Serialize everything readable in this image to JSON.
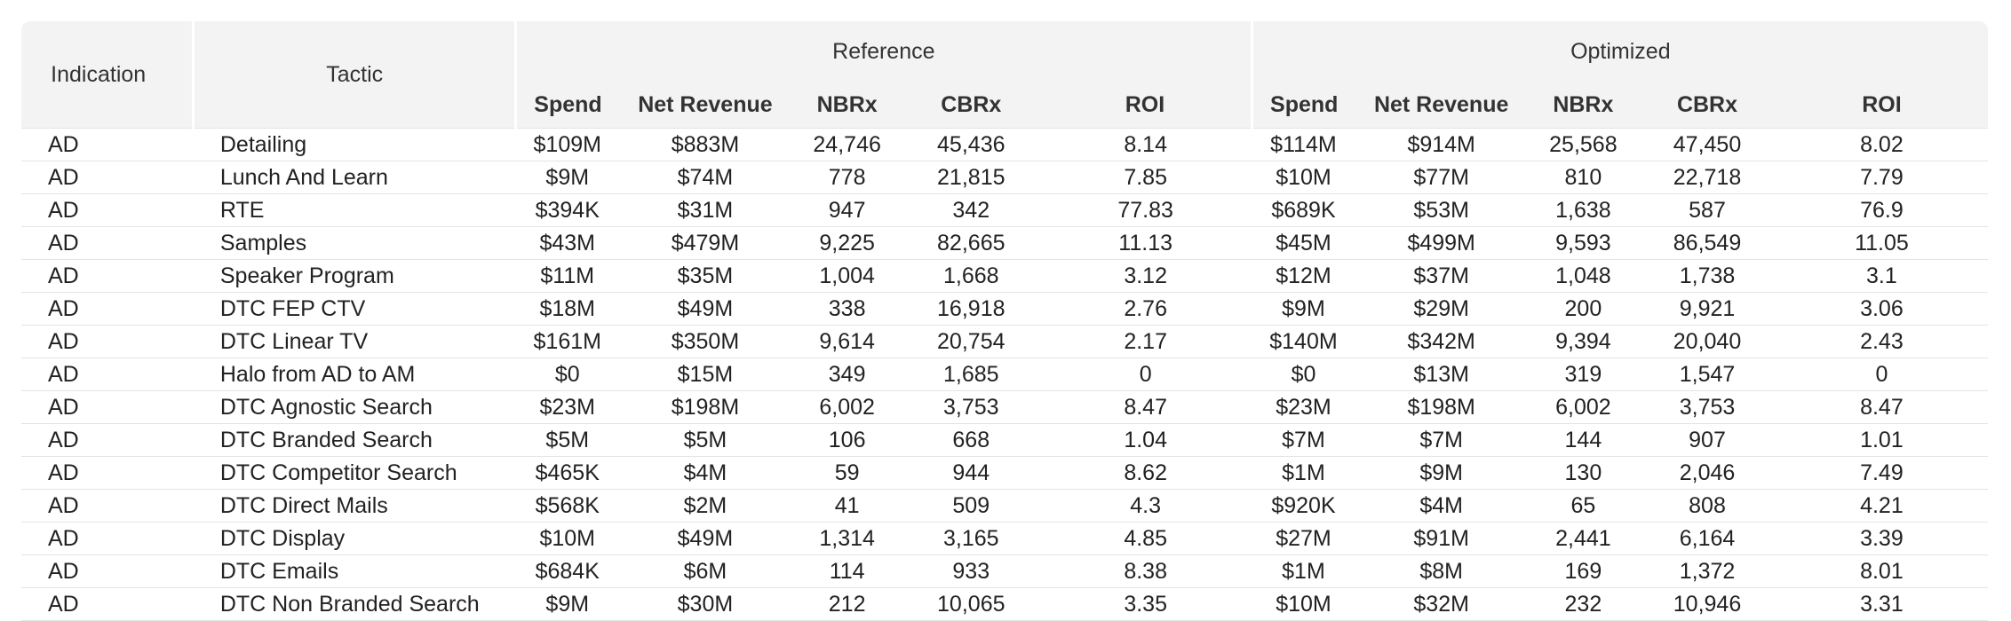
{
  "headers": {
    "indication": "Indication",
    "tactic": "Tactic",
    "reference": "Reference",
    "optimized": "Optimized",
    "metrics": [
      "Spend",
      "Net Revenue",
      "NBRx",
      "CBRx",
      "ROI"
    ]
  },
  "rows": [
    {
      "indication": "AD",
      "tactic": "Detailing",
      "ref": [
        "$109M",
        "$883M",
        "24,746",
        "45,436",
        "8.14"
      ],
      "opt": [
        "$114M",
        "$914M",
        "25,568",
        "47,450",
        "8.02"
      ]
    },
    {
      "indication": "AD",
      "tactic": "Lunch And Learn",
      "ref": [
        "$9M",
        "$74M",
        "778",
        "21,815",
        "7.85"
      ],
      "opt": [
        "$10M",
        "$77M",
        "810",
        "22,718",
        "7.79"
      ]
    },
    {
      "indication": "AD",
      "tactic": "RTE",
      "ref": [
        "$394K",
        "$31M",
        "947",
        "342",
        "77.83"
      ],
      "opt": [
        "$689K",
        "$53M",
        "1,638",
        "587",
        "76.9"
      ]
    },
    {
      "indication": "AD",
      "tactic": "Samples",
      "ref": [
        "$43M",
        "$479M",
        "9,225",
        "82,665",
        "11.13"
      ],
      "opt": [
        "$45M",
        "$499M",
        "9,593",
        "86,549",
        "11.05"
      ]
    },
    {
      "indication": "AD",
      "tactic": "Speaker Program",
      "ref": [
        "$11M",
        "$35M",
        "1,004",
        "1,668",
        "3.12"
      ],
      "opt": [
        "$12M",
        "$37M",
        "1,048",
        "1,738",
        "3.1"
      ]
    },
    {
      "indication": "AD",
      "tactic": "DTC FEP CTV",
      "ref": [
        "$18M",
        "$49M",
        "338",
        "16,918",
        "2.76"
      ],
      "opt": [
        "$9M",
        "$29M",
        "200",
        "9,921",
        "3.06"
      ]
    },
    {
      "indication": "AD",
      "tactic": "DTC Linear TV",
      "ref": [
        "$161M",
        "$350M",
        "9,614",
        "20,754",
        "2.17"
      ],
      "opt": [
        "$140M",
        "$342M",
        "9,394",
        "20,040",
        "2.43"
      ]
    },
    {
      "indication": "AD",
      "tactic": "Halo from AD to AM",
      "ref": [
        "$0",
        "$15M",
        "349",
        "1,685",
        "0"
      ],
      "opt": [
        "$0",
        "$13M",
        "319",
        "1,547",
        "0"
      ]
    },
    {
      "indication": "AD",
      "tactic": "DTC Agnostic Search",
      "ref": [
        "$23M",
        "$198M",
        "6,002",
        "3,753",
        "8.47"
      ],
      "opt": [
        "$23M",
        "$198M",
        "6,002",
        "3,753",
        "8.47"
      ]
    },
    {
      "indication": "AD",
      "tactic": "DTC Branded Search",
      "ref": [
        "$5M",
        "$5M",
        "106",
        "668",
        "1.04"
      ],
      "opt": [
        "$7M",
        "$7M",
        "144",
        "907",
        "1.01"
      ]
    },
    {
      "indication": "AD",
      "tactic": "DTC Competitor Search",
      "ref": [
        "$465K",
        "$4M",
        "59",
        "944",
        "8.62"
      ],
      "opt": [
        "$1M",
        "$9M",
        "130",
        "2,046",
        "7.49"
      ]
    },
    {
      "indication": "AD",
      "tactic": "DTC Direct Mails",
      "ref": [
        "$568K",
        "$2M",
        "41",
        "509",
        "4.3"
      ],
      "opt": [
        "$920K",
        "$4M",
        "65",
        "808",
        "4.21"
      ]
    },
    {
      "indication": "AD",
      "tactic": "DTC Display",
      "ref": [
        "$10M",
        "$49M",
        "1,314",
        "3,165",
        "4.85"
      ],
      "opt": [
        "$27M",
        "$91M",
        "2,441",
        "6,164",
        "3.39"
      ]
    },
    {
      "indication": "AD",
      "tactic": "DTC Emails",
      "ref": [
        "$684K",
        "$6M",
        "114",
        "933",
        "8.38"
      ],
      "opt": [
        "$1M",
        "$8M",
        "169",
        "1,372",
        "8.01"
      ]
    },
    {
      "indication": "AD",
      "tactic": "DTC Non Branded Search",
      "ref": [
        "$9M",
        "$30M",
        "212",
        "10,065",
        "3.35"
      ],
      "opt": [
        "$10M",
        "$32M",
        "232",
        "10,946",
        "3.31"
      ]
    }
  ]
}
